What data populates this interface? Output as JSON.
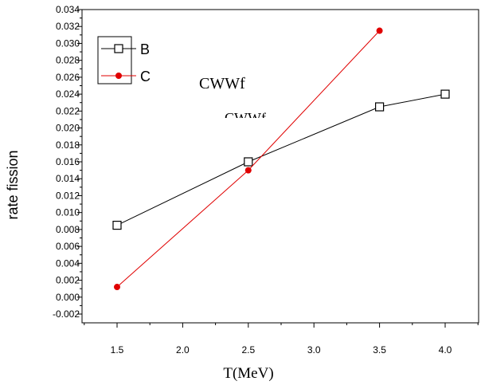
{
  "chart_data": {
    "type": "line",
    "xlabel": "T(MeV)",
    "ylabel": "rate fission",
    "xlim": [
      1.0,
      4.5
    ],
    "ylim": [
      -0.002,
      0.034
    ],
    "x_ticks": [
      "1.5",
      "2.0",
      "2.5",
      "3.0",
      "3.5",
      "4.0"
    ],
    "x_tick_values": [
      1.5,
      2.0,
      2.5,
      3.0,
      3.5,
      4.0
    ],
    "y_ticks": [
      "-0.002",
      "0.000",
      "0.002",
      "0.004",
      "0.006",
      "0.008",
      "0.010",
      "0.012",
      "0.014",
      "0.016",
      "0.018",
      "0.020",
      "0.022",
      "0.024",
      "0.026",
      "0.028",
      "0.030",
      "0.032",
      "0.034"
    ],
    "y_tick_values": [
      -0.002,
      0.0,
      0.002,
      0.004,
      0.006,
      0.008,
      0.01,
      0.012,
      0.014,
      0.016,
      0.018,
      0.02,
      0.022,
      0.024,
      0.026,
      0.028,
      0.03,
      0.032,
      0.034
    ],
    "grid": false,
    "legend": "top-left",
    "series": [
      {
        "name": "B",
        "color": "#000000",
        "marker": "open-square",
        "x": [
          1.5,
          2.5,
          3.5,
          4.0
        ],
        "y": [
          0.0085,
          0.016,
          0.0225,
          0.024
        ]
      },
      {
        "name": "C",
        "color": "#e00000",
        "marker": "filled-circle",
        "x": [
          1.5,
          2.5,
          3.5
        ],
        "y": [
          0.0012,
          0.015,
          0.0315
        ]
      }
    ],
    "annotations": [
      "CWWf",
      "CWWf"
    ]
  }
}
